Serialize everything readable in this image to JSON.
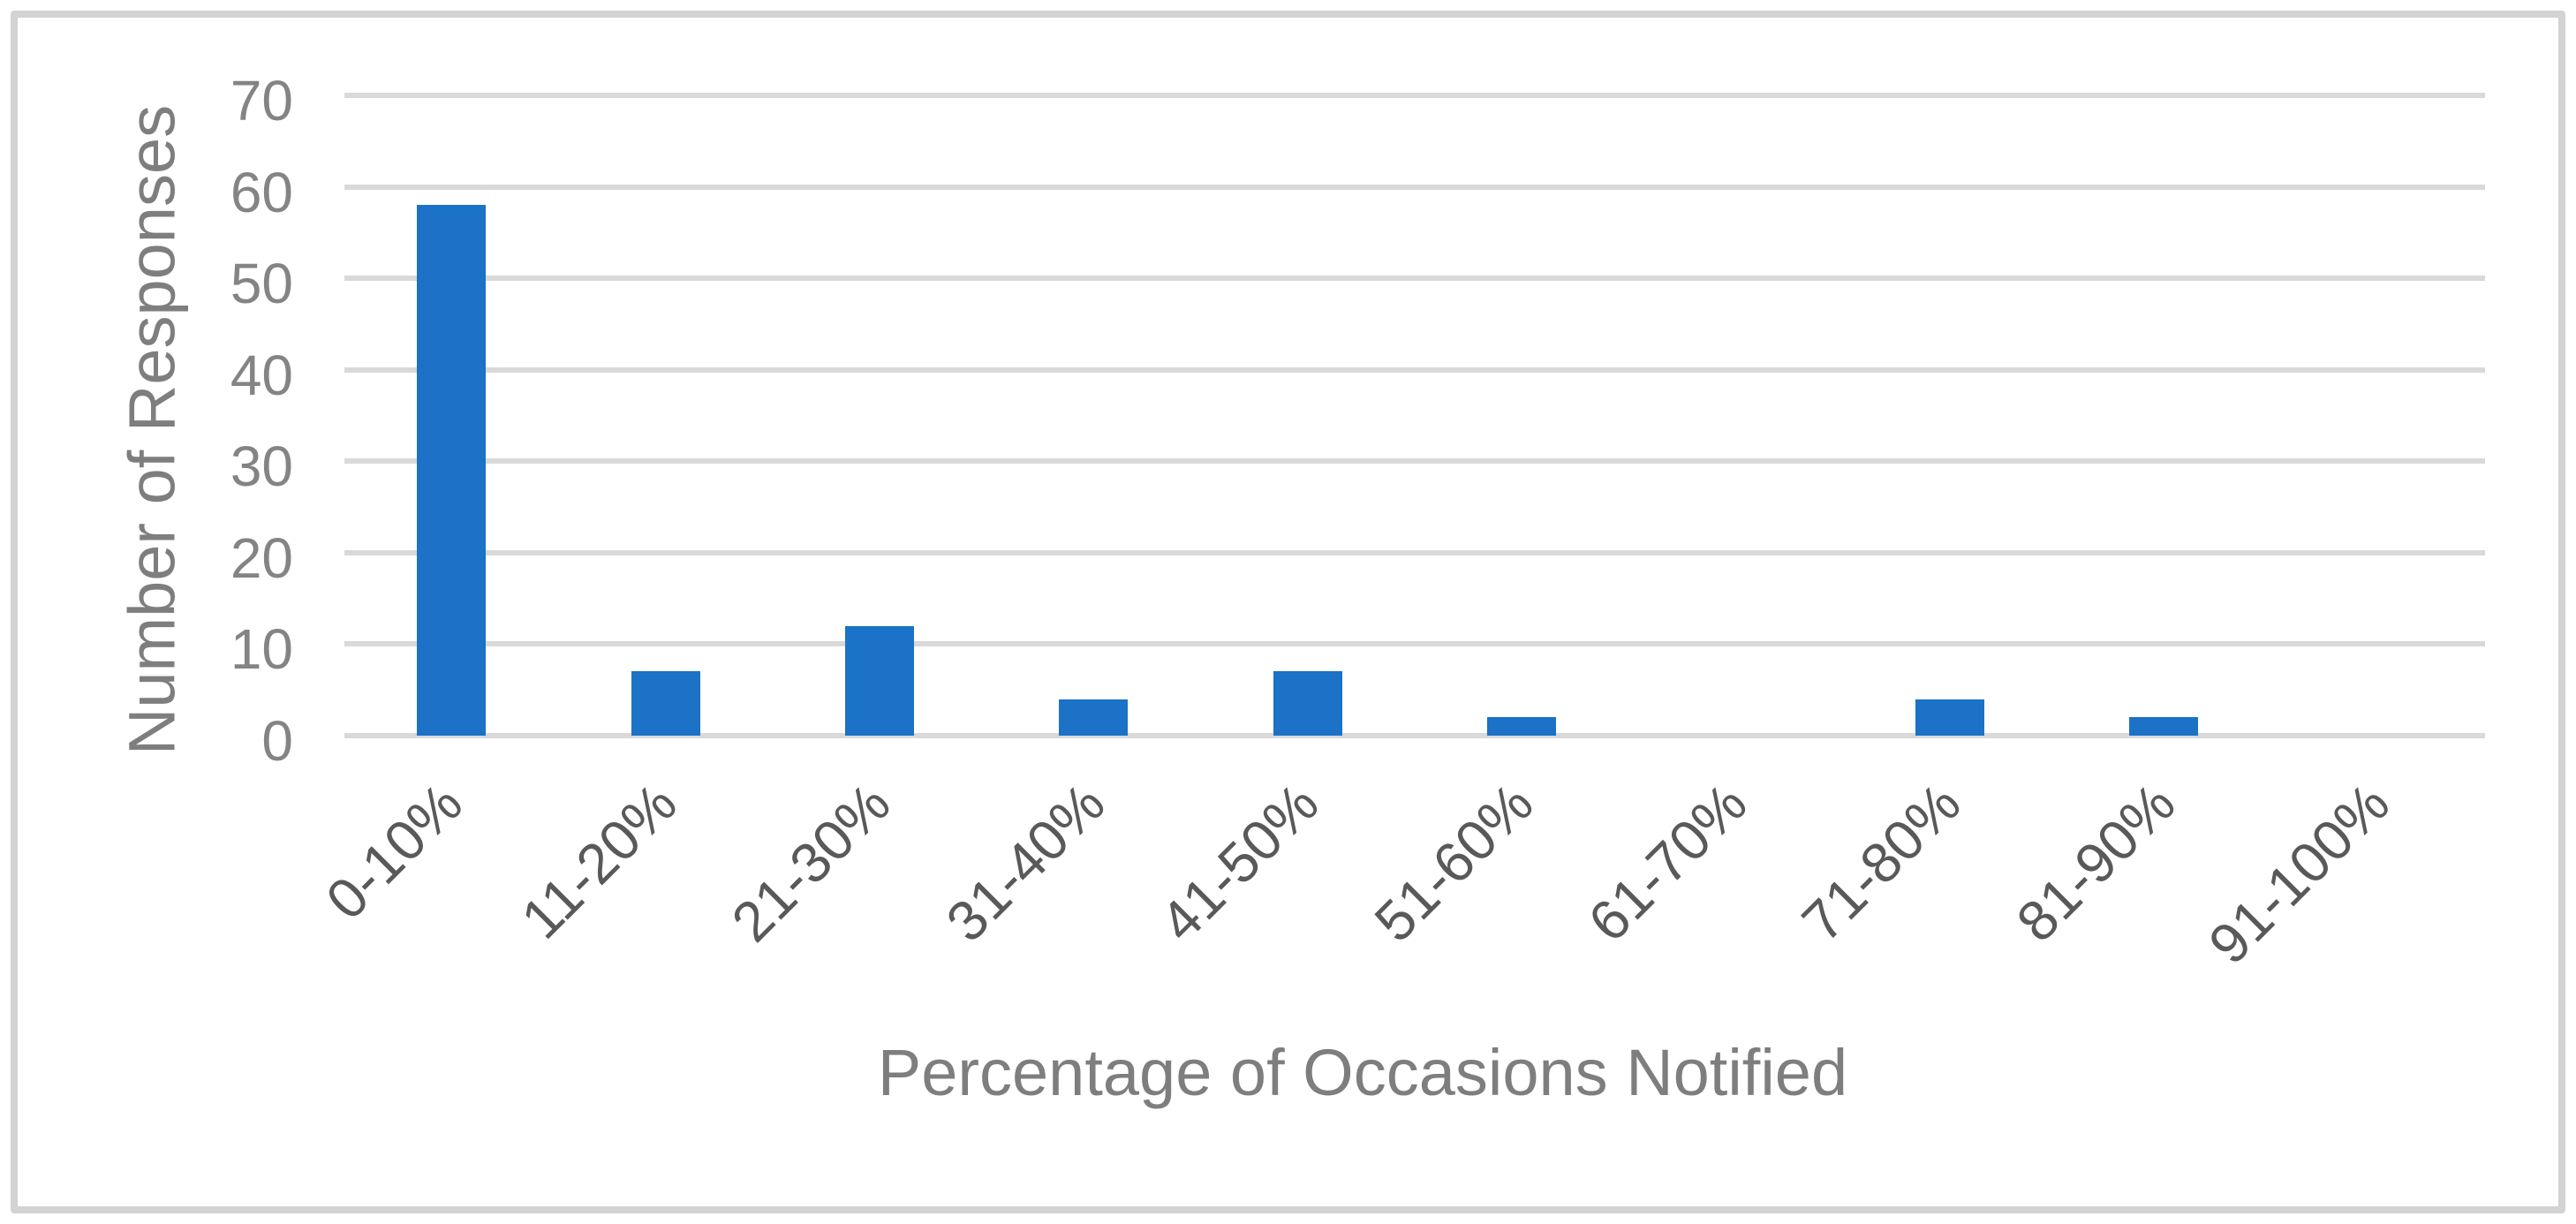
{
  "chart_data": {
    "type": "bar",
    "title": "",
    "categories": [
      "0-10%",
      "11-20%",
      "21-30%",
      "31-40%",
      "41-50%",
      "51-60%",
      "61-70%",
      "71-80%",
      "81-90%",
      "91-100%"
    ],
    "values": [
      58,
      7,
      12,
      4,
      7,
      2,
      0,
      4,
      2,
      0
    ],
    "xlabel": "Percentage of Occasions Notified",
    "ylabel": "Number of Responses",
    "ylim": [
      0,
      70
    ],
    "yticks": [
      0,
      10,
      20,
      30,
      40,
      50,
      60,
      70
    ],
    "grid": "horizontal",
    "legend": "none",
    "colors": {
      "bar": "#1b72c6",
      "gridline": "#d9d9d9",
      "value_text": "#848484",
      "category_text": "#595959",
      "axis_title_text": "#7e7e7e",
      "frame_border": "#d3d3d3",
      "background": "#ffffff"
    }
  }
}
